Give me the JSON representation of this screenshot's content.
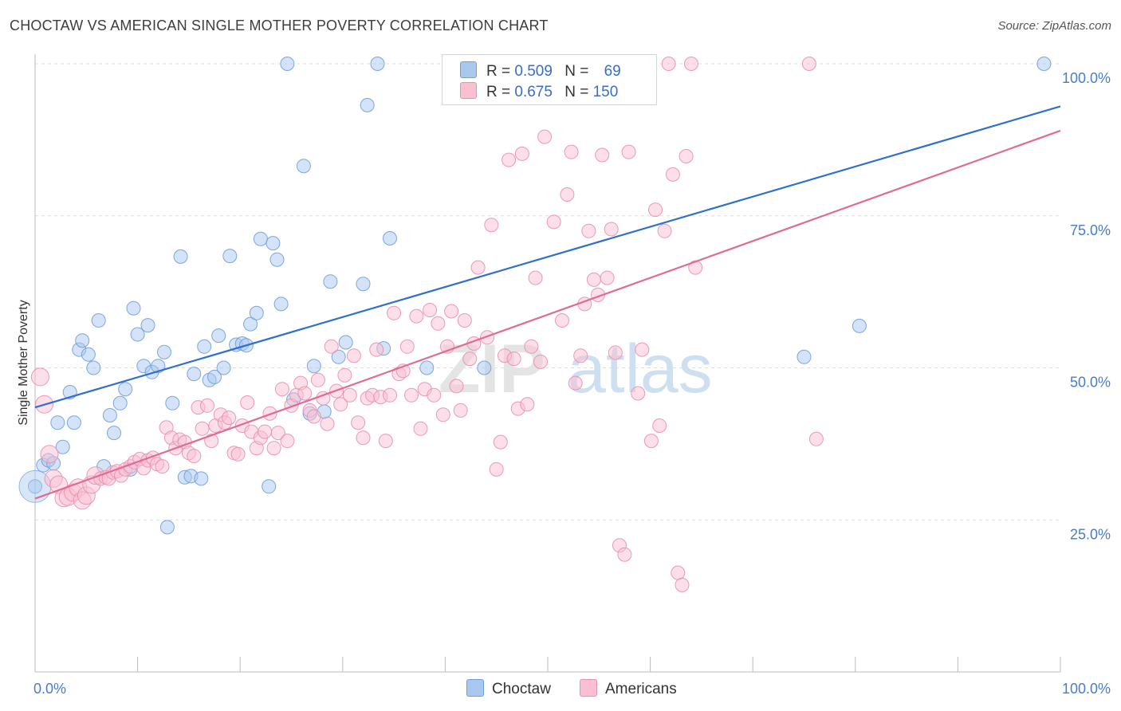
{
  "title": "CHOCTAW VS AMERICAN SINGLE MOTHER POVERTY CORRELATION CHART",
  "source": "Source: ZipAtlas.com",
  "watermark": {
    "zip": "ZIP",
    "atlas": "atlas"
  },
  "legend": {
    "rows": [
      {
        "r_label": "R =",
        "r_value": "0.509",
        "n_label": "N =",
        "n_value": "69",
        "color": "#a9c8f0",
        "border": "#6f9fdc"
      },
      {
        "r_label": "R =",
        "r_value": "0.675",
        "n_label": "N =",
        "n_value": "150",
        "color": "#f9c0d2",
        "border": "#e890ad"
      }
    ]
  },
  "bottom_legend": [
    {
      "label": "Choctaw",
      "color": "#a9c8f0",
      "border": "#6f9fdc"
    },
    {
      "label": "Americans",
      "color": "#f9c0d2",
      "border": "#e890ad"
    }
  ],
  "chart_data": {
    "type": "scatter",
    "title": "CHOCTAW VS AMERICAN SINGLE MOTHER POVERTY CORRELATION CHART",
    "xlabel": "",
    "ylabel": "Single Mother Poverty",
    "xlim": [
      0,
      100
    ],
    "ylim": [
      0,
      100
    ],
    "x_tick_labels": [
      "0.0%",
      "100.0%"
    ],
    "y_tick_labels": [
      "25.0%",
      "50.0%",
      "75.0%",
      "100.0%"
    ],
    "y_ticks": [
      25,
      50,
      75,
      100
    ],
    "grid": true,
    "legend_position": "top-center",
    "series": [
      {
        "name": "Choctaw",
        "color": "#6f9fdc",
        "fill": "#a9c8f0",
        "R": 0.509,
        "N": 69,
        "trend": {
          "x": [
            0,
            100
          ],
          "y": [
            43.5,
            93.0
          ],
          "color": "#2f6fd0"
        },
        "points": [
          [
            0.0,
            30.5
          ],
          [
            0.8,
            34.0
          ],
          [
            1.3,
            34.8
          ],
          [
            1.8,
            34.3
          ],
          [
            2.2,
            41.0
          ],
          [
            2.7,
            37.0
          ],
          [
            3.4,
            46.0
          ],
          [
            3.8,
            41.0
          ],
          [
            4.3,
            53.0
          ],
          [
            4.6,
            54.5
          ],
          [
            5.2,
            52.2
          ],
          [
            5.7,
            50.0
          ],
          [
            6.2,
            57.8
          ],
          [
            6.7,
            33.8
          ],
          [
            7.3,
            42.2
          ],
          [
            7.7,
            39.3
          ],
          [
            8.3,
            44.2
          ],
          [
            8.8,
            46.5
          ],
          [
            9.3,
            33.3
          ],
          [
            9.6,
            59.8
          ],
          [
            10.0,
            55.5
          ],
          [
            10.6,
            50.3
          ],
          [
            11.0,
            57.0
          ],
          [
            11.4,
            49.3
          ],
          [
            12.0,
            50.3
          ],
          [
            12.6,
            52.6
          ],
          [
            12.9,
            23.8
          ],
          [
            13.4,
            44.2
          ],
          [
            14.2,
            68.3
          ],
          [
            14.6,
            32.0
          ],
          [
            15.2,
            32.2
          ],
          [
            15.5,
            49.0
          ],
          [
            16.2,
            31.8
          ],
          [
            16.5,
            53.5
          ],
          [
            17.0,
            48.0
          ],
          [
            17.5,
            48.5
          ],
          [
            17.9,
            55.3
          ],
          [
            18.4,
            50.0
          ],
          [
            19.0,
            68.4
          ],
          [
            19.6,
            53.8
          ],
          [
            20.2,
            54.0
          ],
          [
            20.6,
            53.7
          ],
          [
            21.0,
            57.2
          ],
          [
            21.6,
            59.0
          ],
          [
            22.0,
            71.2
          ],
          [
            22.8,
            30.5
          ],
          [
            23.2,
            70.5
          ],
          [
            23.6,
            67.8
          ],
          [
            24.0,
            60.5
          ],
          [
            24.6,
            100.0
          ],
          [
            25.2,
            44.8
          ],
          [
            26.2,
            83.2
          ],
          [
            26.8,
            42.5
          ],
          [
            27.2,
            50.3
          ],
          [
            28.2,
            42.8
          ],
          [
            28.8,
            64.2
          ],
          [
            29.6,
            51.8
          ],
          [
            30.3,
            54.2
          ],
          [
            32.0,
            63.8
          ],
          [
            32.4,
            93.2
          ],
          [
            33.4,
            100.0
          ],
          [
            34.0,
            53.2
          ],
          [
            34.6,
            71.3
          ],
          [
            38.2,
            50.0
          ],
          [
            43.8,
            50.0
          ],
          [
            45.5,
            100.0
          ],
          [
            75.0,
            51.8
          ],
          [
            80.4,
            56.9
          ],
          [
            98.4,
            100.0
          ]
        ]
      },
      {
        "name": "Americans",
        "color": "#e890ad",
        "fill": "#f9c0d2",
        "R": 0.675,
        "N": 150,
        "trend": {
          "x": [
            0,
            100
          ],
          "y": [
            28.5,
            89.0
          ],
          "color": "#e06a98"
        },
        "points": [
          [
            0.5,
            48.5
          ],
          [
            0.9,
            44.0
          ],
          [
            1.4,
            35.8
          ],
          [
            1.8,
            31.8
          ],
          [
            2.3,
            30.8
          ],
          [
            2.8,
            28.6
          ],
          [
            3.2,
            28.8
          ],
          [
            3.7,
            29.5
          ],
          [
            4.2,
            30.3
          ],
          [
            4.6,
            28.2
          ],
          [
            5.0,
            29.0
          ],
          [
            5.5,
            30.8
          ],
          [
            5.9,
            32.3
          ],
          [
            6.4,
            31.8
          ],
          [
            6.9,
            32.0
          ],
          [
            7.2,
            31.8
          ],
          [
            7.6,
            32.8
          ],
          [
            8.0,
            33.0
          ],
          [
            8.4,
            32.3
          ],
          [
            8.8,
            33.3
          ],
          [
            9.3,
            33.8
          ],
          [
            9.7,
            34.5
          ],
          [
            10.2,
            35.0
          ],
          [
            10.6,
            33.5
          ],
          [
            11.0,
            34.8
          ],
          [
            11.5,
            35.2
          ],
          [
            11.9,
            34.2
          ],
          [
            12.4,
            33.8
          ],
          [
            12.8,
            40.2
          ],
          [
            13.3,
            38.5
          ],
          [
            13.7,
            36.8
          ],
          [
            14.1,
            38.2
          ],
          [
            14.6,
            37.8
          ],
          [
            15.0,
            36.0
          ],
          [
            15.5,
            35.5
          ],
          [
            15.9,
            43.5
          ],
          [
            16.3,
            40.0
          ],
          [
            16.8,
            43.8
          ],
          [
            17.2,
            38.0
          ],
          [
            17.6,
            40.5
          ],
          [
            18.1,
            42.3
          ],
          [
            18.5,
            41.0
          ],
          [
            18.9,
            41.8
          ],
          [
            19.4,
            36.0
          ],
          [
            19.8,
            35.8
          ],
          [
            20.2,
            40.5
          ],
          [
            20.7,
            44.3
          ],
          [
            21.1,
            39.5
          ],
          [
            21.6,
            36.8
          ],
          [
            22.0,
            38.5
          ],
          [
            22.4,
            39.5
          ],
          [
            22.9,
            42.5
          ],
          [
            23.3,
            36.8
          ],
          [
            23.7,
            39.3
          ],
          [
            24.1,
            46.5
          ],
          [
            24.6,
            38.0
          ],
          [
            25.0,
            43.8
          ],
          [
            25.5,
            45.5
          ],
          [
            25.9,
            47.5
          ],
          [
            26.3,
            45.8
          ],
          [
            26.8,
            43.0
          ],
          [
            27.2,
            42.0
          ],
          [
            27.6,
            48.0
          ],
          [
            28.1,
            45.0
          ],
          [
            28.5,
            40.8
          ],
          [
            28.9,
            53.5
          ],
          [
            29.4,
            46.2
          ],
          [
            29.8,
            44.0
          ],
          [
            30.2,
            48.8
          ],
          [
            30.7,
            45.5
          ],
          [
            31.1,
            52.0
          ],
          [
            31.5,
            41.0
          ],
          [
            32.0,
            38.5
          ],
          [
            32.4,
            45.0
          ],
          [
            32.9,
            45.5
          ],
          [
            33.3,
            53.0
          ],
          [
            33.7,
            45.2
          ],
          [
            34.2,
            38.0
          ],
          [
            34.6,
            45.5
          ],
          [
            35.0,
            59.0
          ],
          [
            35.5,
            49.0
          ],
          [
            35.9,
            49.5
          ],
          [
            36.3,
            53.5
          ],
          [
            36.7,
            45.5
          ],
          [
            37.2,
            58.5
          ],
          [
            37.6,
            40.0
          ],
          [
            38.0,
            46.5
          ],
          [
            38.5,
            59.5
          ],
          [
            38.9,
            45.5
          ],
          [
            39.3,
            57.3
          ],
          [
            39.8,
            42.3
          ],
          [
            40.2,
            53.5
          ],
          [
            40.6,
            59.3
          ],
          [
            41.1,
            47.0
          ],
          [
            41.5,
            43.0
          ],
          [
            41.9,
            57.8
          ],
          [
            42.4,
            51.5
          ],
          [
            42.8,
            54.0
          ],
          [
            43.2,
            66.5
          ],
          [
            43.7,
            100.0
          ],
          [
            44.1,
            55.0
          ],
          [
            44.5,
            73.5
          ],
          [
            45.0,
            33.3
          ],
          [
            45.4,
            37.8
          ],
          [
            45.8,
            52.0
          ],
          [
            46.2,
            84.2
          ],
          [
            46.7,
            51.5
          ],
          [
            47.1,
            43.3
          ],
          [
            47.5,
            85.2
          ],
          [
            48.0,
            44.0
          ],
          [
            48.4,
            53.5
          ],
          [
            48.8,
            64.8
          ],
          [
            49.3,
            51.0
          ],
          [
            49.7,
            88.0
          ],
          [
            50.1,
            100.0
          ],
          [
            50.6,
            74.0
          ],
          [
            51.0,
            100.0
          ],
          [
            51.4,
            57.8
          ],
          [
            51.9,
            78.5
          ],
          [
            52.3,
            85.5
          ],
          [
            52.7,
            47.5
          ],
          [
            53.2,
            52.0
          ],
          [
            53.6,
            60.5
          ],
          [
            54.0,
            72.5
          ],
          [
            54.5,
            64.5
          ],
          [
            54.9,
            62.0
          ],
          [
            55.3,
            85.0
          ],
          [
            55.8,
            64.8
          ],
          [
            56.2,
            72.8
          ],
          [
            56.6,
            52.5
          ],
          [
            57.0,
            20.8
          ],
          [
            57.5,
            19.3
          ],
          [
            57.9,
            85.5
          ],
          [
            58.3,
            100.0
          ],
          [
            58.8,
            45.8
          ],
          [
            59.2,
            53.0
          ],
          [
            59.6,
            100.0
          ],
          [
            60.1,
            38.0
          ],
          [
            60.5,
            76.0
          ],
          [
            60.9,
            40.5
          ],
          [
            61.4,
            72.5
          ],
          [
            61.8,
            100.0
          ],
          [
            62.2,
            81.8
          ],
          [
            62.7,
            16.3
          ],
          [
            63.1,
            14.3
          ],
          [
            63.5,
            84.8
          ],
          [
            64.0,
            100.0
          ],
          [
            64.4,
            66.5
          ],
          [
            75.5,
            100.0
          ],
          [
            76.2,
            38.3
          ]
        ]
      }
    ]
  }
}
